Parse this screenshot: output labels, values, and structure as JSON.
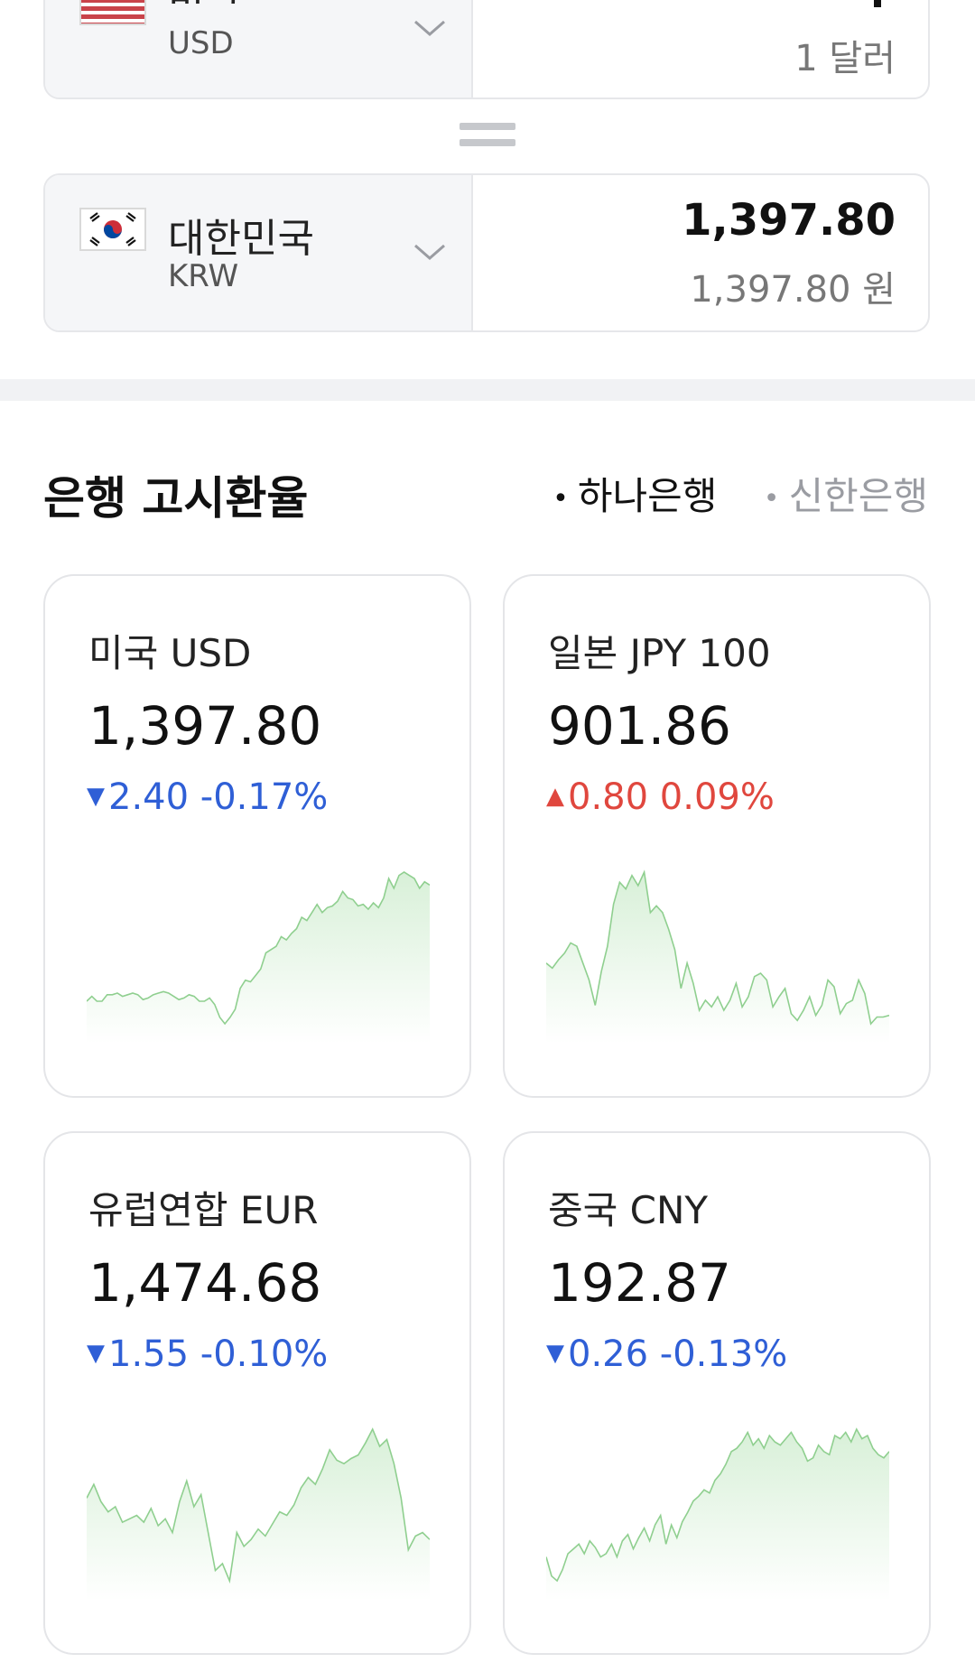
{
  "converter": {
    "from": {
      "country": "미국",
      "code": "USD",
      "unit_text": "1 달러"
    },
    "to": {
      "country": "대한민국",
      "code": "KRW",
      "amount": "1,397.80",
      "unit_text": "1,397.80 원"
    }
  },
  "rates_section": {
    "title": "은행 고시환율",
    "banks": [
      {
        "label": "하나은행",
        "active": true
      },
      {
        "label": "신한은행",
        "active": false
      }
    ]
  },
  "cards": [
    {
      "title": "미국 USD",
      "value": "1,397.80",
      "direction": "down",
      "change": "2.40 -0.17%",
      "trend": [
        20,
        23,
        20,
        20,
        24,
        24,
        25,
        23,
        24,
        25,
        24,
        21,
        22,
        24,
        25,
        26,
        25,
        23,
        21,
        22,
        24,
        23,
        20,
        20,
        22,
        18,
        10,
        6,
        10,
        15,
        28,
        33,
        32,
        36,
        40,
        50,
        52,
        54,
        60,
        58,
        62,
        65,
        72,
        70,
        75,
        80,
        75,
        78,
        79,
        82,
        88,
        84,
        83,
        79,
        80,
        77,
        81,
        78,
        84,
        96,
        90,
        98,
        100,
        98,
        96,
        90,
        94,
        92
      ]
    },
    {
      "title": "일본 JPY 100",
      "value": "901.86",
      "direction": "up",
      "change": "0.80 0.09%",
      "trend": [
        40,
        37,
        42,
        46,
        52,
        50,
        40,
        30,
        15,
        35,
        50,
        75,
        88,
        84,
        92,
        86,
        94,
        70,
        74,
        70,
        60,
        48,
        25,
        40,
        28,
        12,
        18,
        14,
        20,
        12,
        18,
        28,
        14,
        20,
        32,
        34,
        30,
        14,
        20,
        25,
        10,
        6,
        12,
        20,
        9,
        15,
        30,
        26,
        10,
        16,
        18,
        30,
        22,
        4,
        8,
        8,
        9
      ]
    },
    {
      "title": "유럽연합 EUR",
      "value": "1,474.68",
      "direction": "down",
      "change": "1.55 -0.10%",
      "trend": [
        60,
        68,
        58,
        52,
        55,
        46,
        48,
        50,
        46,
        54,
        44,
        48,
        40,
        58,
        70,
        55,
        62,
        40,
        18,
        22,
        12,
        40,
        32,
        36,
        42,
        38,
        45,
        52,
        50,
        56,
        66,
        72,
        68,
        77,
        88,
        82,
        80,
        83,
        85,
        92,
        100,
        90,
        94,
        80,
        60,
        30,
        38,
        40,
        36
      ]
    },
    {
      "title": "중국 CNY",
      "value": "192.87",
      "direction": "down",
      "change": "0.26 -0.13%",
      "trend": [
        20,
        8,
        5,
        12,
        22,
        25,
        28,
        22,
        30,
        26,
        20,
        22,
        28,
        20,
        30,
        34,
        25,
        32,
        38,
        30,
        40,
        46,
        28,
        40,
        32,
        42,
        48,
        55,
        58,
        62,
        60,
        68,
        72,
        78,
        86,
        88,
        92,
        98,
        90,
        94,
        88,
        96,
        92,
        90,
        94,
        98,
        92,
        88,
        80,
        82,
        90,
        86,
        84,
        96,
        94,
        98,
        92,
        100,
        94,
        96,
        88,
        84,
        82,
        86
      ]
    }
  ],
  "colors": {
    "down": "#2f5fd6",
    "up": "#e0473e",
    "spark_line": "#8fcf8f",
    "spark_fill": "#d8f0d8"
  }
}
